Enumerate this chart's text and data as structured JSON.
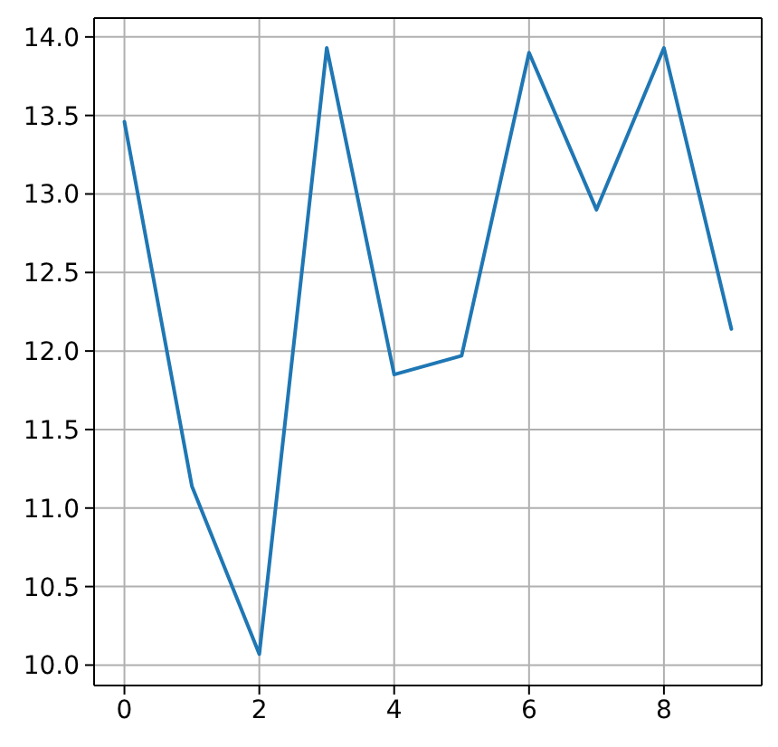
{
  "chart_data": {
    "type": "line",
    "x": [
      0,
      1,
      2,
      3,
      4,
      5,
      6,
      7,
      8,
      9
    ],
    "values": [
      13.46,
      11.14,
      10.07,
      13.93,
      11.85,
      11.97,
      13.9,
      12.9,
      13.93,
      12.14
    ],
    "color": "#1f77b4",
    "xlim": [
      -0.45,
      9.45
    ],
    "ylim": [
      9.87,
      14.12
    ],
    "xticks": [
      0,
      2,
      4,
      6,
      8
    ],
    "yticks": [
      {
        "value": 10,
        "label": "10.0"
      },
      {
        "value": 10.5,
        "label": "10.5"
      },
      {
        "value": 11,
        "label": "11.0"
      },
      {
        "value": 11.5,
        "label": "11.5"
      },
      {
        "value": 12,
        "label": "12.0"
      },
      {
        "value": 12.5,
        "label": "12.5"
      },
      {
        "value": 13,
        "label": "13.0"
      },
      {
        "value": 13.5,
        "label": "13.5"
      },
      {
        "value": 14,
        "label": "14.0"
      }
    ],
    "grid": true,
    "line_style": "solid"
  }
}
